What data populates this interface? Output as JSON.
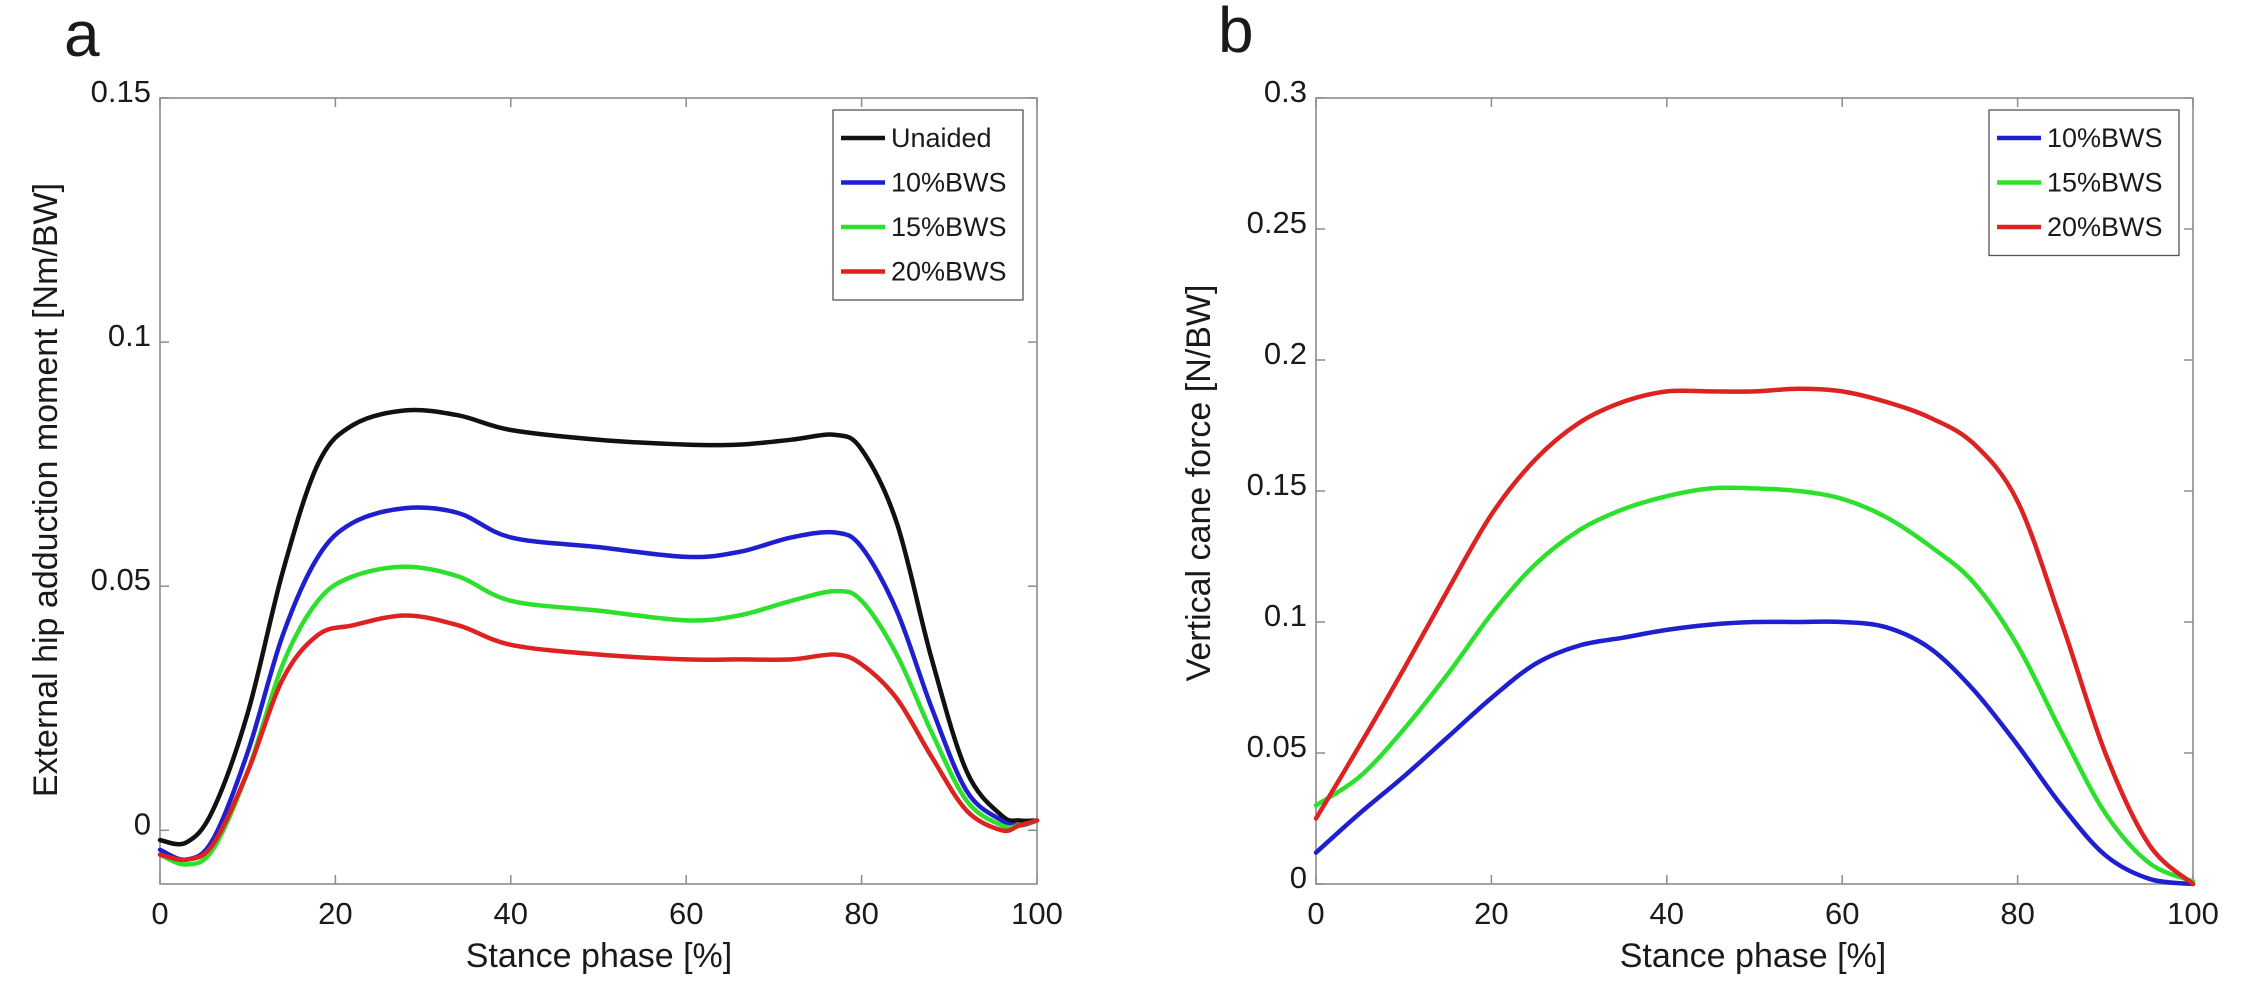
{
  "chart_data": [
    {
      "type": "line",
      "panel_label": "a",
      "xlabel": "Stance phase [%]",
      "ylabel": "External hip adduction moment [Nm/BW]",
      "xlim": [
        0,
        100
      ],
      "ylim": [
        -0.011,
        0.15
      ],
      "x_ticks": [
        0,
        20,
        40,
        60,
        80,
        100
      ],
      "x_tick_labels": [
        "0",
        "20",
        "40",
        "60",
        "80",
        "100"
      ],
      "y_ticks": [
        0,
        0.05,
        0.1,
        0.15
      ],
      "y_tick_labels": [
        "0",
        "0.05",
        "0.1",
        "0.15"
      ],
      "grid": false,
      "legend_position": "top-right",
      "x": [
        0,
        3,
        6,
        10,
        14,
        18,
        22,
        28,
        34,
        40,
        50,
        60,
        66,
        72,
        77,
        80,
        84,
        88,
        92,
        96,
        98,
        100
      ],
      "series": [
        {
          "name": "Unaided",
          "color": "#111111",
          "values": [
            -0.002,
            -0.0025,
            0.004,
            0.024,
            0.053,
            0.075,
            0.083,
            0.086,
            0.085,
            0.082,
            0.08,
            0.079,
            0.079,
            0.08,
            0.081,
            0.078,
            0.063,
            0.035,
            0.012,
            0.003,
            0.002,
            0.002
          ]
        },
        {
          "name": "10%BWS",
          "color": "#1f1fd0",
          "values": [
            -0.004,
            -0.006,
            -0.002,
            0.016,
            0.04,
            0.056,
            0.063,
            0.066,
            0.065,
            0.06,
            0.058,
            0.056,
            0.057,
            0.06,
            0.061,
            0.058,
            0.045,
            0.025,
            0.008,
            0.002,
            0.001,
            0.002
          ]
        },
        {
          "name": "15%BWS",
          "color": "#2ee02e",
          "values": [
            -0.005,
            -0.007,
            -0.004,
            0.012,
            0.034,
            0.047,
            0.052,
            0.054,
            0.052,
            0.047,
            0.045,
            0.043,
            0.044,
            0.047,
            0.049,
            0.047,
            0.036,
            0.02,
            0.006,
            0.001,
            0.001,
            0.002
          ]
        },
        {
          "name": "20%BWS",
          "color": "#dd2222",
          "values": [
            -0.005,
            -0.006,
            -0.003,
            0.012,
            0.031,
            0.04,
            0.042,
            0.044,
            0.042,
            0.038,
            0.036,
            0.035,
            0.035,
            0.035,
            0.036,
            0.034,
            0.027,
            0.015,
            0.004,
            0.0,
            0.001,
            0.002
          ]
        }
      ]
    },
    {
      "type": "line",
      "panel_label": "b",
      "xlabel": "Stance phase [%]",
      "ylabel": "Vertical cane force [N/BW]",
      "xlim": [
        0,
        100
      ],
      "ylim": [
        0,
        0.3
      ],
      "x_ticks": [
        0,
        20,
        40,
        60,
        80,
        100
      ],
      "x_tick_labels": [
        "0",
        "20",
        "40",
        "60",
        "80",
        "100"
      ],
      "y_ticks": [
        0,
        0.05,
        0.1,
        0.15,
        0.2,
        0.25,
        0.3
      ],
      "y_tick_labels": [
        "0",
        "0.05",
        "0.1",
        "0.15",
        "0.2",
        "0.25",
        "0.3"
      ],
      "grid": false,
      "legend_position": "top-right",
      "x": [
        0,
        5,
        10,
        15,
        20,
        25,
        30,
        35,
        40,
        45,
        50,
        55,
        60,
        65,
        70,
        75,
        80,
        85,
        90,
        95,
        100
      ],
      "series": [
        {
          "name": "10%BWS",
          "color": "#1f1fd0",
          "values": [
            0.012,
            0.027,
            0.041,
            0.056,
            0.071,
            0.084,
            0.091,
            0.094,
            0.097,
            0.099,
            0.1,
            0.1,
            0.1,
            0.098,
            0.09,
            0.074,
            0.053,
            0.03,
            0.011,
            0.002,
            0.0
          ]
        },
        {
          "name": "15%BWS",
          "color": "#2ee02e",
          "values": [
            0.03,
            0.041,
            0.059,
            0.08,
            0.103,
            0.122,
            0.135,
            0.143,
            0.148,
            0.151,
            0.151,
            0.15,
            0.147,
            0.14,
            0.129,
            0.115,
            0.091,
            0.058,
            0.027,
            0.008,
            0.001
          ]
        },
        {
          "name": "20%BWS",
          "color": "#dd2222",
          "values": [
            0.025,
            0.053,
            0.082,
            0.112,
            0.141,
            0.162,
            0.176,
            0.184,
            0.188,
            0.188,
            0.188,
            0.189,
            0.188,
            0.184,
            0.178,
            0.168,
            0.146,
            0.1,
            0.05,
            0.015,
            0.0
          ]
        }
      ]
    }
  ]
}
